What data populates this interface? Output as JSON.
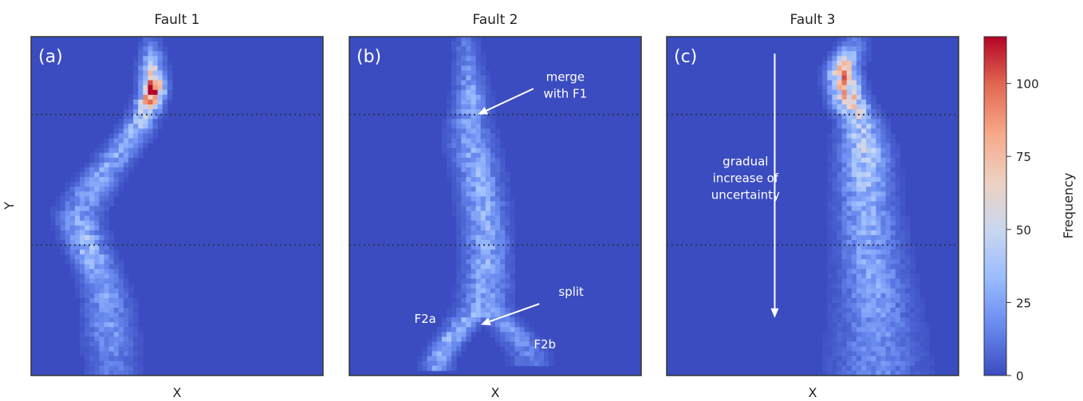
{
  "figure": {
    "colorbar": {
      "label": "Frequency",
      "ticks": [
        0,
        25,
        50,
        75,
        100
      ],
      "min": 0,
      "max": 116,
      "colormap": [
        "#3b4cc0",
        "#6788ee",
        "#9abbff",
        "#c9d7f0",
        "#edd1c2",
        "#f7a889",
        "#e26952",
        "#b40426"
      ]
    },
    "ylabel": "Y",
    "divider_color": "#2b3550"
  },
  "chart_data": [
    {
      "type": "heatmap",
      "title": "Fault 1",
      "panel_label": "(a)",
      "xlabel": "X",
      "ylabel": "Y",
      "xlim": [
        0,
        1
      ],
      "ylim": [
        0,
        1
      ],
      "grid": false,
      "dividers_y": [
        0.77,
        0.385
      ],
      "trace": [
        [
          0.985,
          0.41,
          0.022,
          10
        ],
        [
          0.92,
          0.415,
          0.025,
          40
        ],
        [
          0.84,
          0.42,
          0.025,
          110
        ],
        [
          0.77,
          0.39,
          0.03,
          45
        ],
        [
          0.7,
          0.34,
          0.035,
          30
        ],
        [
          0.62,
          0.27,
          0.04,
          28
        ],
        [
          0.54,
          0.2,
          0.045,
          25
        ],
        [
          0.47,
          0.16,
          0.045,
          26
        ],
        [
          0.385,
          0.19,
          0.04,
          40
        ],
        [
          0.31,
          0.23,
          0.04,
          30
        ],
        [
          0.22,
          0.26,
          0.045,
          25
        ],
        [
          0.12,
          0.27,
          0.05,
          22
        ],
        [
          0.03,
          0.28,
          0.05,
          14
        ]
      ],
      "annotations": []
    },
    {
      "type": "heatmap",
      "title": "Fault 2",
      "panel_label": "(b)",
      "xlabel": "X",
      "ylabel": "",
      "xlim": [
        0,
        1
      ],
      "ylim": [
        0,
        1
      ],
      "grid": false,
      "dividers_y": [
        0.77,
        0.385
      ],
      "trace": [
        [
          0.985,
          0.4,
          0.025,
          12
        ],
        [
          0.9,
          0.41,
          0.03,
          20
        ],
        [
          0.8,
          0.42,
          0.035,
          30
        ],
        [
          0.75,
          0.41,
          0.04,
          25
        ],
        [
          0.68,
          0.42,
          0.045,
          28
        ],
        [
          0.6,
          0.44,
          0.045,
          30
        ],
        [
          0.5,
          0.46,
          0.045,
          30
        ],
        [
          0.4,
          0.47,
          0.045,
          30
        ],
        [
          0.3,
          0.47,
          0.045,
          30
        ],
        [
          0.2,
          0.46,
          0.05,
          28
        ],
        [
          0.16,
          0.4,
          0.035,
          30
        ],
        [
          0.1,
          0.34,
          0.03,
          35
        ],
        [
          0.04,
          0.3,
          0.03,
          25
        ],
        [
          0.16,
          0.52,
          0.035,
          25
        ],
        [
          0.11,
          0.58,
          0.04,
          20
        ],
        [
          0.05,
          0.62,
          0.04,
          15
        ]
      ],
      "annotations": [
        {
          "text": "merge\nwith F1",
          "tx": 0.74,
          "ty": 0.87,
          "ax": 0.44,
          "ay": 0.77,
          "arrow": true
        },
        {
          "text": "split",
          "tx": 0.76,
          "ty": 0.235,
          "ax": 0.45,
          "ay": 0.15,
          "arrow": true
        },
        {
          "text": "F2a",
          "tx": 0.26,
          "ty": 0.155,
          "arrow": false
        },
        {
          "text": "F2b",
          "tx": 0.67,
          "ty": 0.08,
          "arrow": false
        }
      ]
    },
    {
      "type": "heatmap",
      "title": "Fault 3",
      "panel_label": "(c)",
      "xlabel": "X",
      "ylabel": "",
      "xlim": [
        0,
        1
      ],
      "ylim": [
        0,
        1
      ],
      "grid": false,
      "dividers_y": [
        0.77,
        0.385
      ],
      "trace": [
        [
          0.985,
          0.64,
          0.03,
          12
        ],
        [
          0.9,
          0.6,
          0.03,
          80
        ],
        [
          0.82,
          0.62,
          0.035,
          75
        ],
        [
          0.75,
          0.66,
          0.04,
          45
        ],
        [
          0.66,
          0.68,
          0.05,
          45
        ],
        [
          0.55,
          0.68,
          0.055,
          35
        ],
        [
          0.45,
          0.69,
          0.06,
          30
        ],
        [
          0.35,
          0.7,
          0.065,
          28
        ],
        [
          0.25,
          0.71,
          0.07,
          25
        ],
        [
          0.15,
          0.72,
          0.08,
          22
        ],
        [
          0.05,
          0.72,
          0.09,
          18
        ]
      ],
      "annotations": [
        {
          "text": "gradual\nincrease of\nuncertainty",
          "tx": 0.27,
          "ty": 0.62,
          "ax": 0.37,
          "ay": 0.17,
          "sx": 0.37,
          "sy": 0.95,
          "arrow": true,
          "vertical_arrow": true
        }
      ]
    }
  ]
}
